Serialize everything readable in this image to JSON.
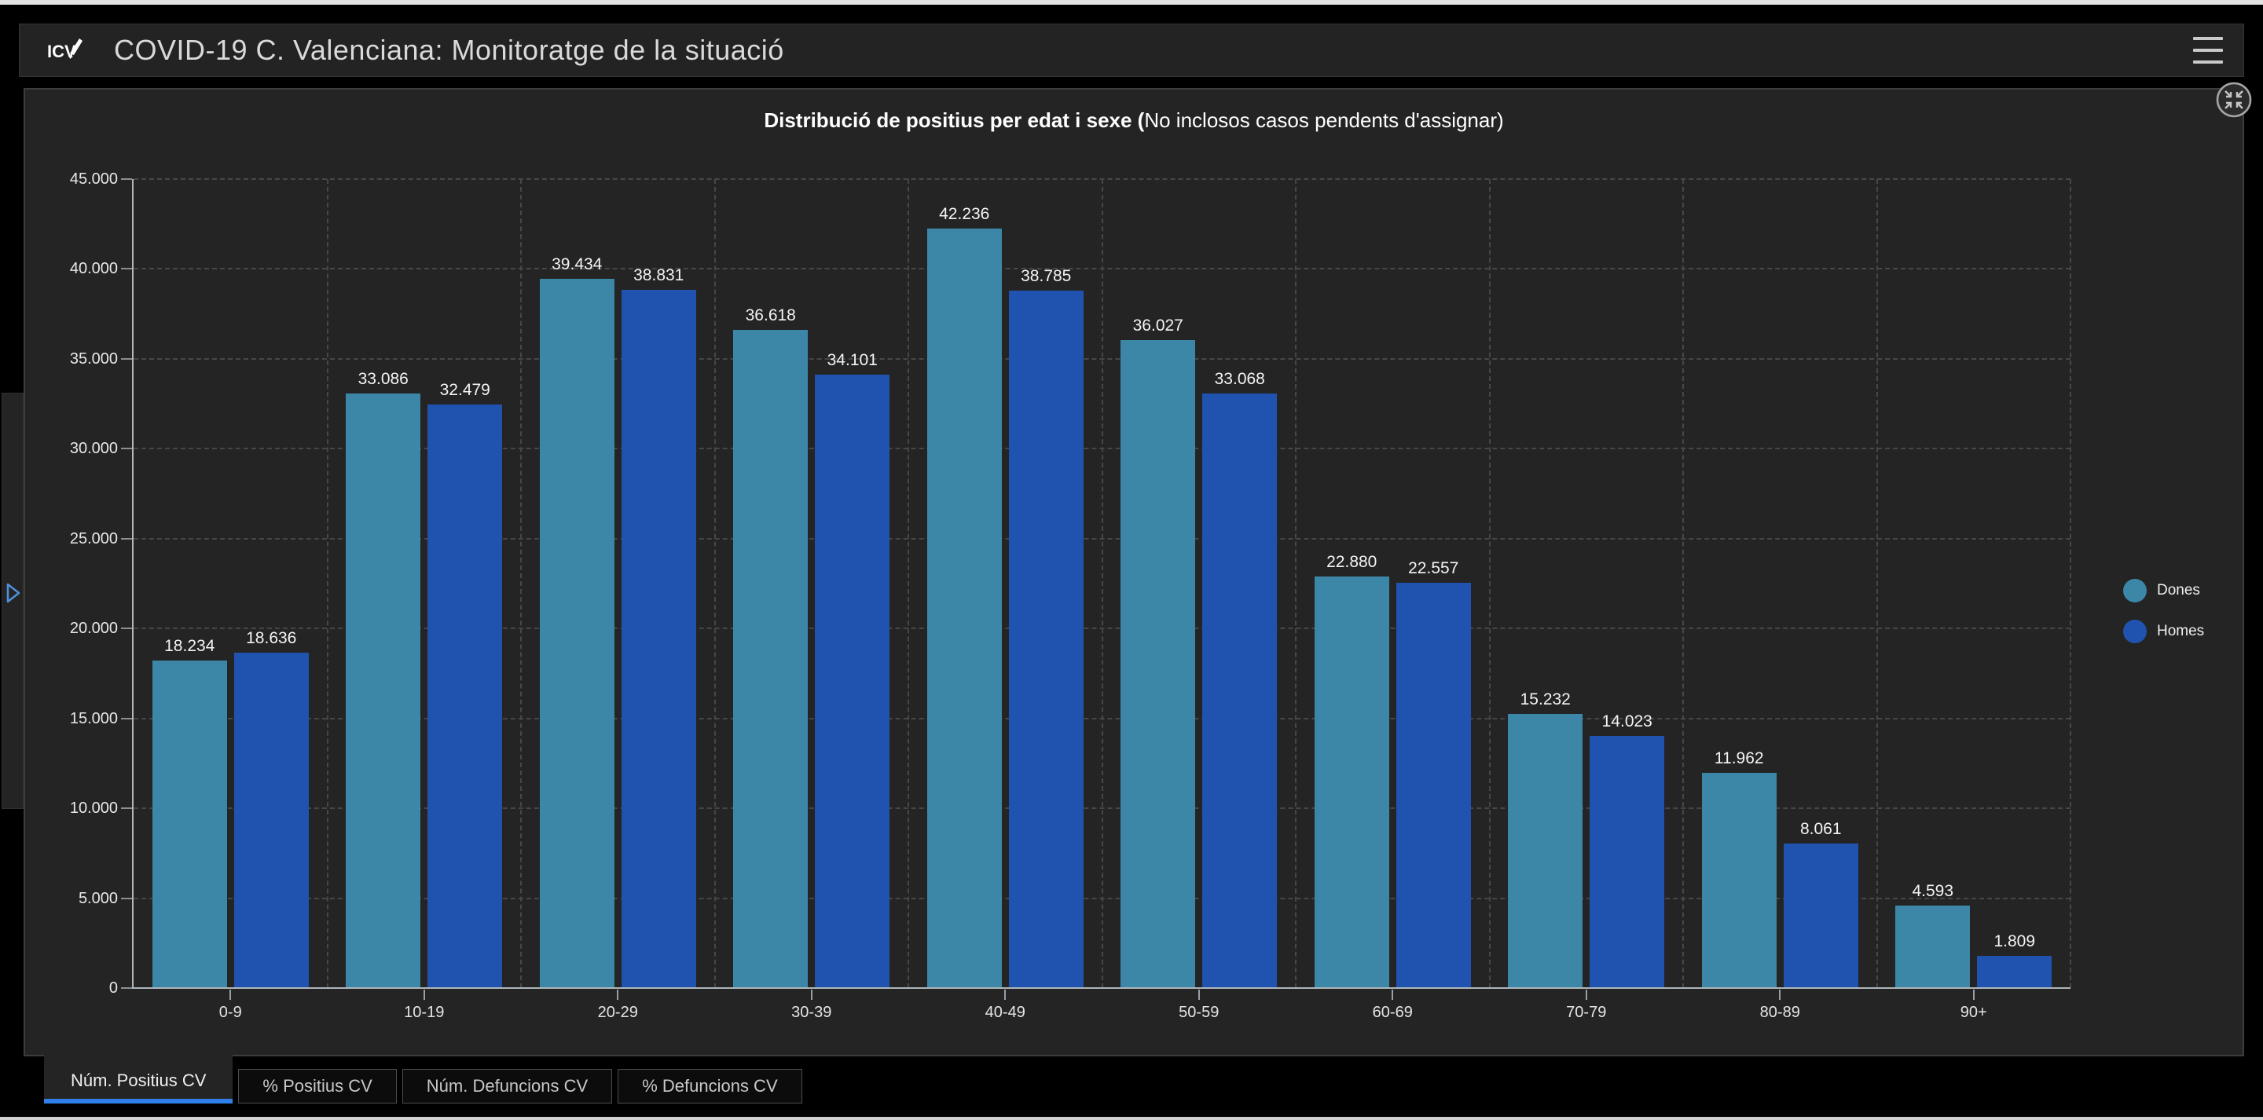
{
  "header": {
    "title": "COVID-19 C. Valenciana: Monitoratge de la situació",
    "logo_icon": "icv-logo",
    "menu_icon": "hamburger-menu"
  },
  "left_panel": {
    "expand_icon": "chevron-right-outline"
  },
  "panel": {
    "collapse_icon": "collapse-inward-arrows"
  },
  "chart": {
    "title_bold": "Distribució de positius per edat i sexe (",
    "title_regular": "No inclosos casos pendents d'assignar)"
  },
  "chart_data": {
    "type": "bar",
    "title": "Distribució de positius per edat i sexe (No inclosos casos pendents d'assignar)",
    "categories": [
      "0-9",
      "10-19",
      "20-29",
      "30-39",
      "40-49",
      "50-59",
      "60-69",
      "70-79",
      "80-89",
      "90+"
    ],
    "series": [
      {
        "name": "Dones",
        "color": "#3c87a8",
        "values": [
          18234,
          33086,
          39434,
          36618,
          42236,
          36027,
          22880,
          15232,
          11962,
          4593
        ],
        "value_labels": [
          "18.234",
          "33.086",
          "39.434",
          "36.618",
          "42.236",
          "36.027",
          "22.880",
          "15.232",
          "11.962",
          "4.593"
        ]
      },
      {
        "name": "Homes",
        "color": "#2053b0",
        "values": [
          18636,
          32479,
          38831,
          34101,
          38785,
          33068,
          22557,
          14023,
          8061,
          1809
        ],
        "value_labels": [
          "18.636",
          "32.479",
          "38.831",
          "34.101",
          "38.785",
          "33.068",
          "22.557",
          "14.023",
          "8.061",
          "1.809"
        ]
      }
    ],
    "ylim": [
      0,
      45000
    ],
    "ytick_step": 5000,
    "ytick_labels": [
      "0",
      "5.000",
      "10.000",
      "15.000",
      "20.000",
      "25.000",
      "30.000",
      "35.000",
      "40.000",
      "45.000"
    ],
    "grid": "dashed",
    "legend_position": "right-middle"
  },
  "legend": {
    "items": [
      {
        "label": "Dones",
        "color": "#3c87a8"
      },
      {
        "label": "Homes",
        "color": "#2053b0"
      }
    ]
  },
  "tabs": [
    {
      "label": "Núm. Positius CV",
      "active": true
    },
    {
      "label": "% Positius CV",
      "active": false
    },
    {
      "label": "Núm. Defuncions CV",
      "active": false
    },
    {
      "label": "% Defuncions CV",
      "active": false
    }
  ],
  "colors": {
    "accent_tab_underline": "#2f80e8",
    "expand_arrow": "#4f8fdb",
    "panel_bg": "#232423",
    "page_bg": "#000000"
  }
}
